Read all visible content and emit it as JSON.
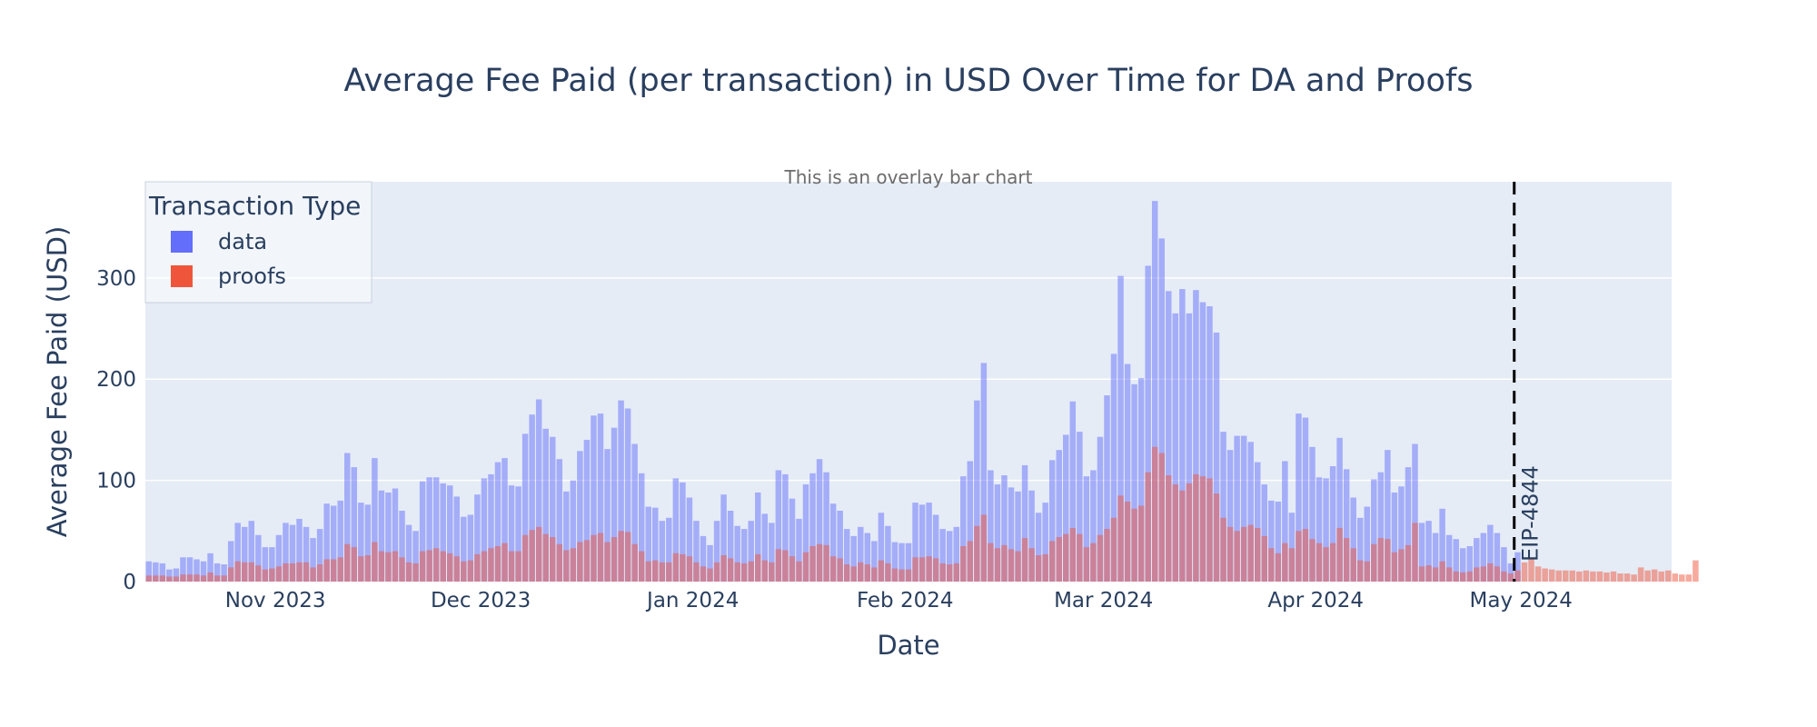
{
  "chart_data": {
    "type": "bar",
    "barmode": "overlay",
    "title": "Average Fee Paid (per transaction) in USD Over Time for DA and Proofs",
    "subtitle": "This is an overlay bar chart",
    "xlabel": "Date",
    "ylabel": "Average Fee Paid (USD)",
    "ylim": [
      0,
      395
    ],
    "yticks": [
      0,
      100,
      200,
      300
    ],
    "xlim": [
      "2023-10-13",
      "2024-05-23"
    ],
    "xticks": [
      {
        "date": "2023-11-01",
        "label": "Nov 2023"
      },
      {
        "date": "2023-12-01",
        "label": "Dec 2023"
      },
      {
        "date": "2024-01-01",
        "label": "Jan 2024"
      },
      {
        "date": "2024-02-01",
        "label": "Feb 2024"
      },
      {
        "date": "2024-03-01",
        "label": "Mar 2024"
      },
      {
        "date": "2024-04-01",
        "label": "Apr 2024"
      },
      {
        "date": "2024-05-01",
        "label": "May 2024"
      }
    ],
    "grid": true,
    "legend": {
      "title": "Transaction Type",
      "position": "top-left"
    },
    "annotation": {
      "date": "2024-04-30",
      "label": "EIP-4844",
      "style": "dashed vertical line"
    },
    "series": [
      {
        "name": "data",
        "color": "#636efa",
        "opacity": 0.5,
        "start": "2023-10-13",
        "values": [
          20,
          19,
          18,
          12,
          13,
          24,
          24,
          22,
          20,
          28,
          18,
          17,
          40,
          58,
          54,
          60,
          46,
          34,
          34,
          46,
          58,
          56,
          62,
          54,
          43,
          52,
          77,
          75,
          80,
          127,
          113,
          78,
          76,
          122,
          90,
          88,
          92,
          70,
          56,
          50,
          99,
          103,
          103,
          97,
          95,
          84,
          64,
          66,
          86,
          102,
          106,
          118,
          122,
          95,
          94,
          146,
          165,
          180,
          151,
          143,
          121,
          89,
          100,
          129,
          140,
          164,
          166,
          131,
          152,
          179,
          171,
          136,
          107,
          74,
          73,
          60,
          63,
          102,
          98,
          83,
          60,
          45,
          36,
          60,
          86,
          70,
          55,
          52,
          60,
          88,
          67,
          58,
          110,
          106,
          82,
          62,
          96,
          107,
          121,
          108,
          77,
          70,
          52,
          45,
          54,
          48,
          40,
          68,
          55,
          39,
          38,
          38,
          78,
          76,
          78,
          66,
          52,
          50,
          54,
          104,
          119,
          179,
          216,
          110,
          96,
          105,
          93,
          89,
          115,
          90,
          68,
          78,
          120,
          130,
          145,
          178,
          148,
          104,
          110,
          143,
          184,
          225,
          302,
          215,
          195,
          201,
          312,
          376,
          339,
          287,
          265,
          289,
          265,
          288,
          276,
          272,
          246,
          148,
          130,
          144,
          144,
          138,
          118,
          96,
          80,
          79,
          119,
          68,
          166,
          162,
          133,
          103,
          102,
          114,
          142,
          111,
          83,
          63,
          74,
          101,
          108,
          130,
          88,
          94,
          113,
          136,
          58,
          60,
          48,
          72,
          46,
          42,
          33,
          35,
          43,
          48,
          56,
          48,
          34,
          18,
          29
        ]
      },
      {
        "name": "proofs",
        "color": "#ef553b",
        "opacity": 0.5,
        "start": "2023-10-13",
        "values": [
          6,
          6,
          6,
          5,
          5,
          7,
          7,
          7,
          6,
          9,
          6,
          6,
          14,
          20,
          19,
          19,
          16,
          12,
          13,
          15,
          18,
          18,
          19,
          19,
          14,
          17,
          22,
          22,
          24,
          37,
          34,
          25,
          26,
          39,
          30,
          29,
          30,
          24,
          19,
          18,
          30,
          31,
          33,
          30,
          28,
          25,
          20,
          21,
          27,
          30,
          33,
          35,
          38,
          30,
          30,
          46,
          51,
          54,
          47,
          44,
          37,
          31,
          33,
          39,
          41,
          46,
          48,
          39,
          44,
          50,
          49,
          37,
          30,
          20,
          21,
          19,
          19,
          28,
          27,
          25,
          19,
          15,
          13,
          19,
          26,
          23,
          19,
          18,
          20,
          27,
          21,
          19,
          32,
          31,
          25,
          20,
          29,
          35,
          37,
          36,
          25,
          23,
          17,
          15,
          19,
          17,
          14,
          21,
          18,
          13,
          12,
          12,
          24,
          24,
          25,
          23,
          18,
          17,
          18,
          35,
          40,
          55,
          66,
          38,
          33,
          36,
          32,
          30,
          43,
          33,
          26,
          27,
          40,
          44,
          47,
          53,
          47,
          34,
          38,
          46,
          52,
          63,
          85,
          79,
          72,
          75,
          108,
          133,
          127,
          105,
          96,
          90,
          97,
          106,
          104,
          102,
          87,
          63,
          54,
          50,
          54,
          56,
          53,
          45,
          33,
          28,
          38,
          33,
          50,
          52,
          42,
          38,
          34,
          38,
          53,
          43,
          33,
          21,
          20,
          37,
          43,
          42,
          29,
          32,
          36,
          58,
          15,
          16,
          14,
          20,
          14,
          10,
          9,
          10,
          14,
          15,
          18,
          15,
          10,
          8,
          11,
          19,
          23,
          15,
          13,
          12,
          11,
          11,
          11,
          10,
          11,
          10,
          10,
          9,
          10,
          8,
          8,
          7,
          14,
          11,
          12,
          10,
          11,
          8,
          7,
          7,
          21
        ]
      }
    ]
  }
}
